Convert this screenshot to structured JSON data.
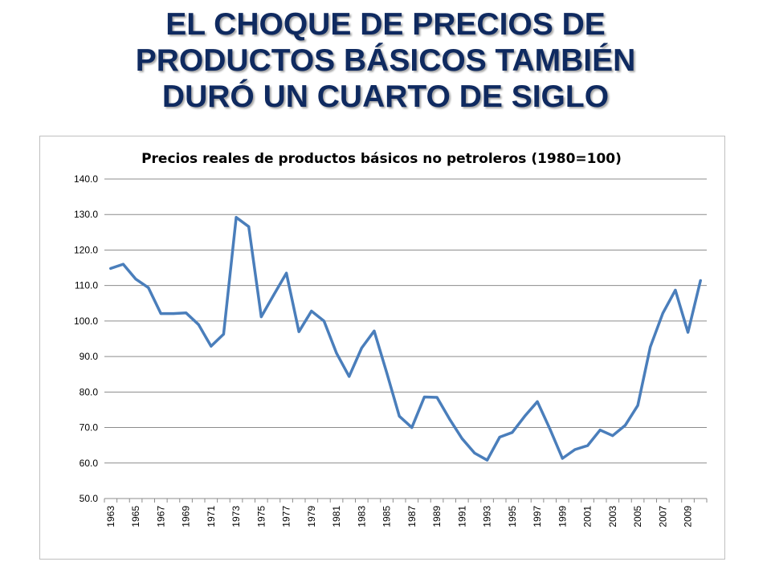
{
  "slide": {
    "title_lines": [
      "EL CHOQUE DE PRECIOS DE",
      "PRODUCTOS BÁSICOS TAMBIÉN",
      "DURÓ UN CUARTO DE SIGLO"
    ]
  },
  "colors": {
    "title": "#0f2a60",
    "series": "#4a7ebb",
    "grid": "#8c8c8c"
  },
  "chart_data": {
    "type": "line",
    "title": "Precios reales de productos básicos no petroleros (1980=100)",
    "xlabel": "",
    "ylabel": "",
    "ylim": [
      50,
      140
    ],
    "y_ticks": [
      "140.0",
      "130.0",
      "120.0",
      "110.0",
      "100.0",
      "90.0",
      "80.0",
      "70.0",
      "60.0",
      "50.0"
    ],
    "y_tick_values": [
      140,
      130,
      120,
      110,
      100,
      90,
      80,
      70,
      60,
      50
    ],
    "x_tick_labels": [
      "1963",
      "1965",
      "1967",
      "1969",
      "1971",
      "1973",
      "1975",
      "1977",
      "1979",
      "1981",
      "1983",
      "1985",
      "1987",
      "1989",
      "1991",
      "1993",
      "1995",
      "1997",
      "1999",
      "2001",
      "2003",
      "2005",
      "2007",
      "2009"
    ],
    "grid": "horizontal",
    "legend": "none",
    "x": [
      1963,
      1964,
      1965,
      1966,
      1967,
      1968,
      1969,
      1970,
      1971,
      1972,
      1973,
      1974,
      1975,
      1976,
      1977,
      1978,
      1979,
      1980,
      1981,
      1982,
      1983,
      1984,
      1985,
      1986,
      1987,
      1988,
      1989,
      1990,
      1991,
      1992,
      1993,
      1994,
      1995,
      1996,
      1997,
      1998,
      1999,
      2000,
      2001,
      2002,
      2003,
      2004,
      2005,
      2006,
      2007,
      2008,
      2009,
      2010
    ],
    "series": [
      {
        "values": [
          114.8,
          116.0,
          111.8,
          109.4,
          102.1,
          102.1,
          102.3,
          99.0,
          92.9,
          96.3,
          129.2,
          126.6,
          101.2,
          107.4,
          113.5,
          97.0,
          102.8,
          100.0,
          90.9,
          84.4,
          92.4,
          97.2,
          85.4,
          73.2,
          70.0,
          78.6,
          78.5,
          72.4,
          66.9,
          62.8,
          60.8,
          67.3,
          68.6,
          73.2,
          77.3,
          69.6,
          61.3,
          63.8,
          64.9,
          69.3,
          67.7,
          70.6,
          76.2,
          92.7,
          102.2,
          108.7,
          96.8,
          111.4
        ]
      }
    ]
  }
}
